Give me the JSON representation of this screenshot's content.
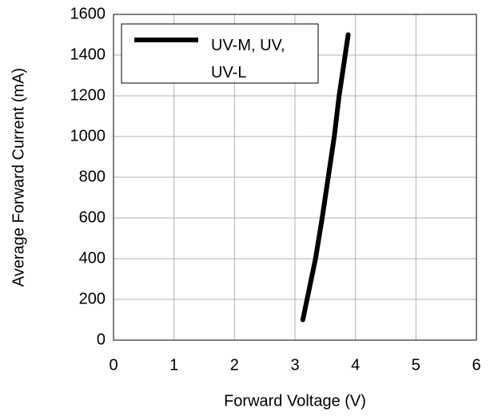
{
  "chart_data": {
    "type": "line",
    "xlabel": "Forward Voltage (V)",
    "ylabel": "Average Forward Current (mA)",
    "x": [
      3.13,
      3.2,
      3.34,
      3.45,
      3.55,
      3.65,
      3.73,
      3.83,
      3.88
    ],
    "series": [
      {
        "name": "UV-M, UV, UV-L",
        "color": "#000000",
        "values": [
          100,
          200,
          400,
          600,
          800,
          1000,
          1200,
          1400,
          1500
        ]
      }
    ],
    "xlim": [
      0,
      6
    ],
    "xticks": [
      0,
      1,
      2,
      3,
      4,
      5,
      6
    ],
    "ylim": [
      0,
      1600
    ],
    "yticks": [
      0,
      200,
      400,
      600,
      800,
      1000,
      1200,
      1400,
      1600
    ],
    "grid": true,
    "legend": "upper left"
  }
}
